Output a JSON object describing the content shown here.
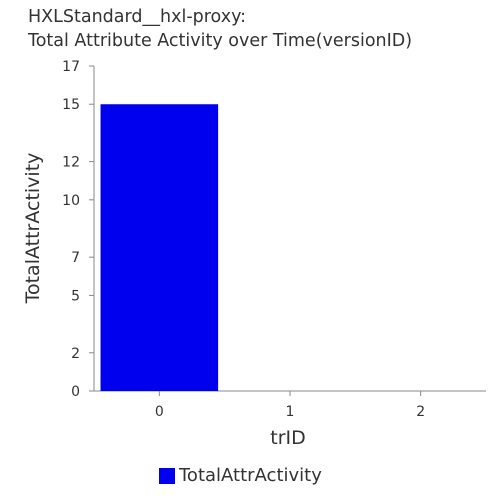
{
  "chart_data": {
    "type": "bar",
    "title_lines": [
      "HXLStandard__hxl-proxy:",
      "Total Attribute Activity over Time(versionID)"
    ],
    "categories": [
      "0",
      "1",
      "2"
    ],
    "series": [
      {
        "name": "TotalAttrActivity",
        "values": [
          15,
          0,
          0
        ],
        "color": "#0000ee"
      }
    ],
    "xlabel": "trID",
    "ylabel": "TotalAttrActivity",
    "ylim": [
      0,
      17
    ],
    "yticks": [
      0,
      2,
      5,
      7,
      10,
      12,
      15,
      17
    ],
    "grid": false,
    "legend_position": "bottom"
  }
}
